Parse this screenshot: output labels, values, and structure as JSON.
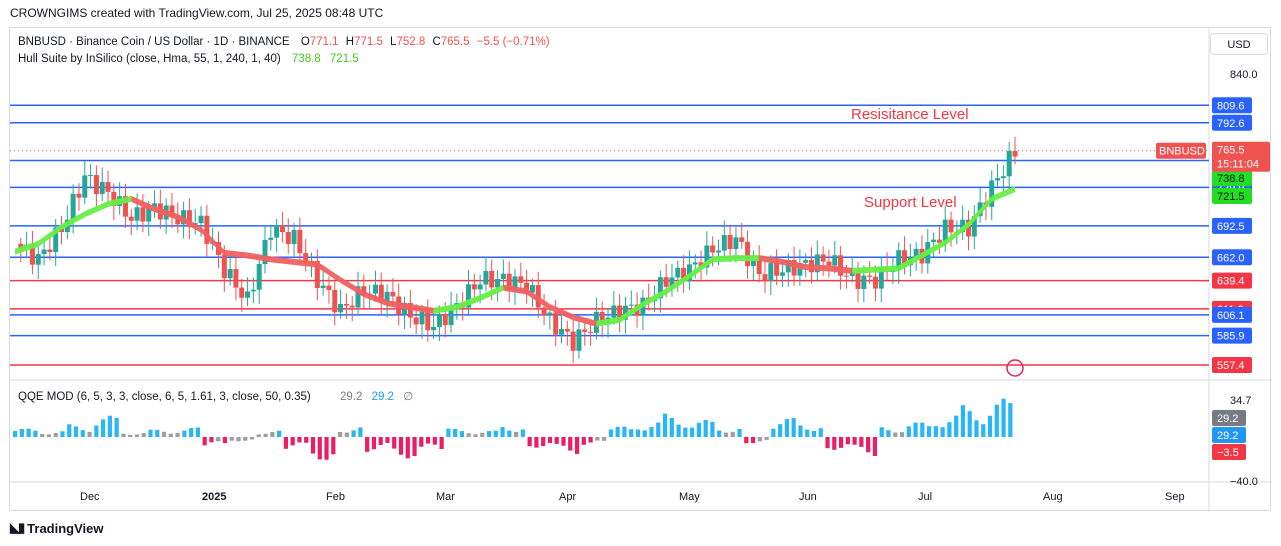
{
  "credit": "CROWNGIMS created with TradingView.com, Jul 25, 2025 08:48 UTC",
  "footer_logo": "TradingView",
  "currency": "USD",
  "ticker": {
    "name": "BNBUSD · Binance Coin / US Dollar · 1D · BINANCE",
    "o_label": "O",
    "o": "771.1",
    "h_label": "H",
    "h": "771.5",
    "l_label": "L",
    "l": "752.8",
    "c_label": "C",
    "c": "765.5",
    "change": "−5.5 (−0.71%)"
  },
  "hull": {
    "label": "Hull Suite by InSilico (close, Hma, 55, 1, 240, 1, 40)",
    "v1": "738.8",
    "v2": "721.5"
  },
  "qqe": {
    "label": "QQE MOD (6, 5, 3, 3, close, 6, 5, 1.61, 3, close, 50, 0.35)",
    "v1": "29.2",
    "v2": "29.2",
    "v3": "∅"
  },
  "annotations": {
    "resistance": "Resisitance Level",
    "support": "Support Level"
  },
  "colors": {
    "up": "#26a69a",
    "down": "#ef5350",
    "blue_line": "#2962ff",
    "red_line": "#f23645",
    "hull_green": "#66ee44",
    "hull_red": "#f06060"
  },
  "chart_data": {
    "type": "candlestick",
    "symbol": "BNBUSD",
    "y_range": [
      550,
      850
    ],
    "x_labels": [
      "Dec",
      "2025",
      "Feb",
      "Mar",
      "Apr",
      "May",
      "Jun",
      "Jul",
      "Aug",
      "Sep"
    ],
    "y_ticks": [
      "840.0"
    ],
    "price_label": {
      "symbol": "BNBUSD",
      "price": "765.5",
      "countdown": "15:11:04"
    },
    "levels": [
      {
        "value": 809.6,
        "label": "809.6",
        "color": "blue"
      },
      {
        "value": 792.6,
        "label": "792.6",
        "color": "blue"
      },
      {
        "value": 756.0,
        "label": "756.0",
        "color": "blue"
      },
      {
        "value": 729.9,
        "label": "729.9",
        "color": "blue"
      },
      {
        "value": 692.5,
        "label": "692.5",
        "color": "blue"
      },
      {
        "value": 662.0,
        "label": "662.0",
        "color": "blue"
      },
      {
        "value": 639.4,
        "label": "639.4",
        "color": "red"
      },
      {
        "value": 611.9,
        "label": "611.9",
        "color": "red"
      },
      {
        "value": 606.1,
        "label": "606.1",
        "color": "blue"
      },
      {
        "value": 585.9,
        "label": "585.9",
        "color": "blue"
      },
      {
        "value": 557.4,
        "label": "557.4",
        "color": "red"
      }
    ],
    "hull_labels": [
      {
        "value": 738.8,
        "label": "738.8"
      },
      {
        "value": 721.5,
        "label": "721.5"
      }
    ],
    "closes_weekly": [
      675,
      660,
      690,
      740,
      725,
      700,
      710,
      700,
      695,
      650,
      620,
      690,
      680,
      640,
      610,
      630,
      625,
      605,
      595,
      615,
      640,
      640,
      635,
      600,
      580,
      600,
      610,
      615,
      640,
      650,
      670,
      680,
      645,
      650,
      655,
      660,
      640,
      640,
      660,
      665,
      690,
      690,
      730,
      765
    ],
    "qqe": {
      "range": [
        -40,
        40
      ],
      "ticks": [
        "34.7",
        "−40.0"
      ],
      "labels": [
        {
          "value": 29.2,
          "label": "29.2",
          "color": "gray"
        },
        {
          "value": 29.2,
          "label": "29.2",
          "color": "blue"
        },
        {
          "value": -3.5,
          "label": "−3.5",
          "color": "red"
        }
      ],
      "bars_weekly": [
        8,
        6,
        12,
        20,
        5,
        7,
        9,
        -10,
        -4,
        6,
        -12,
        -22,
        10,
        -14,
        -20,
        -15,
        8,
        6,
        12,
        -10,
        -16,
        -8,
        10,
        15,
        22,
        16,
        10,
        -6,
        18,
        14,
        -12,
        -18,
        10,
        14,
        22,
        30,
        36
      ]
    }
  }
}
